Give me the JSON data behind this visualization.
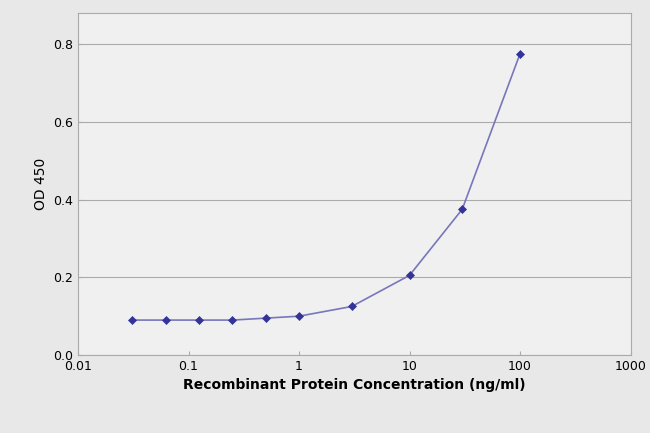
{
  "x_values": [
    0.031,
    0.063,
    0.125,
    0.25,
    0.5,
    1.0,
    3.0,
    10.0,
    30.0,
    100.0
  ],
  "y_values": [
    0.09,
    0.09,
    0.09,
    0.09,
    0.095,
    0.1,
    0.125,
    0.205,
    0.375,
    0.775
  ],
  "line_color": "#7777bb",
  "marker_color": "#333399",
  "marker_style": "D",
  "marker_size": 4,
  "line_width": 1.2,
  "xlabel": "Recombinant Protein Concentration (ng/ml)",
  "ylabel": "OD 450",
  "xlim": [
    0.01,
    1000
  ],
  "ylim": [
    0,
    0.88
  ],
  "yticks": [
    0,
    0.2,
    0.4,
    0.6,
    0.8
  ],
  "xtick_positions": [
    0.01,
    0.1,
    1,
    10,
    100,
    1000
  ],
  "xtick_labels": [
    "0.01",
    "0.1",
    "1",
    "10",
    "100",
    "1000"
  ],
  "plot_bg_color": "#f0f0f0",
  "fig_bg_color": "#e8e8e8",
  "grid_color": "#aaaaaa",
  "xlabel_fontsize": 10,
  "ylabel_fontsize": 10,
  "tick_fontsize": 9,
  "xlabel_bold": true
}
